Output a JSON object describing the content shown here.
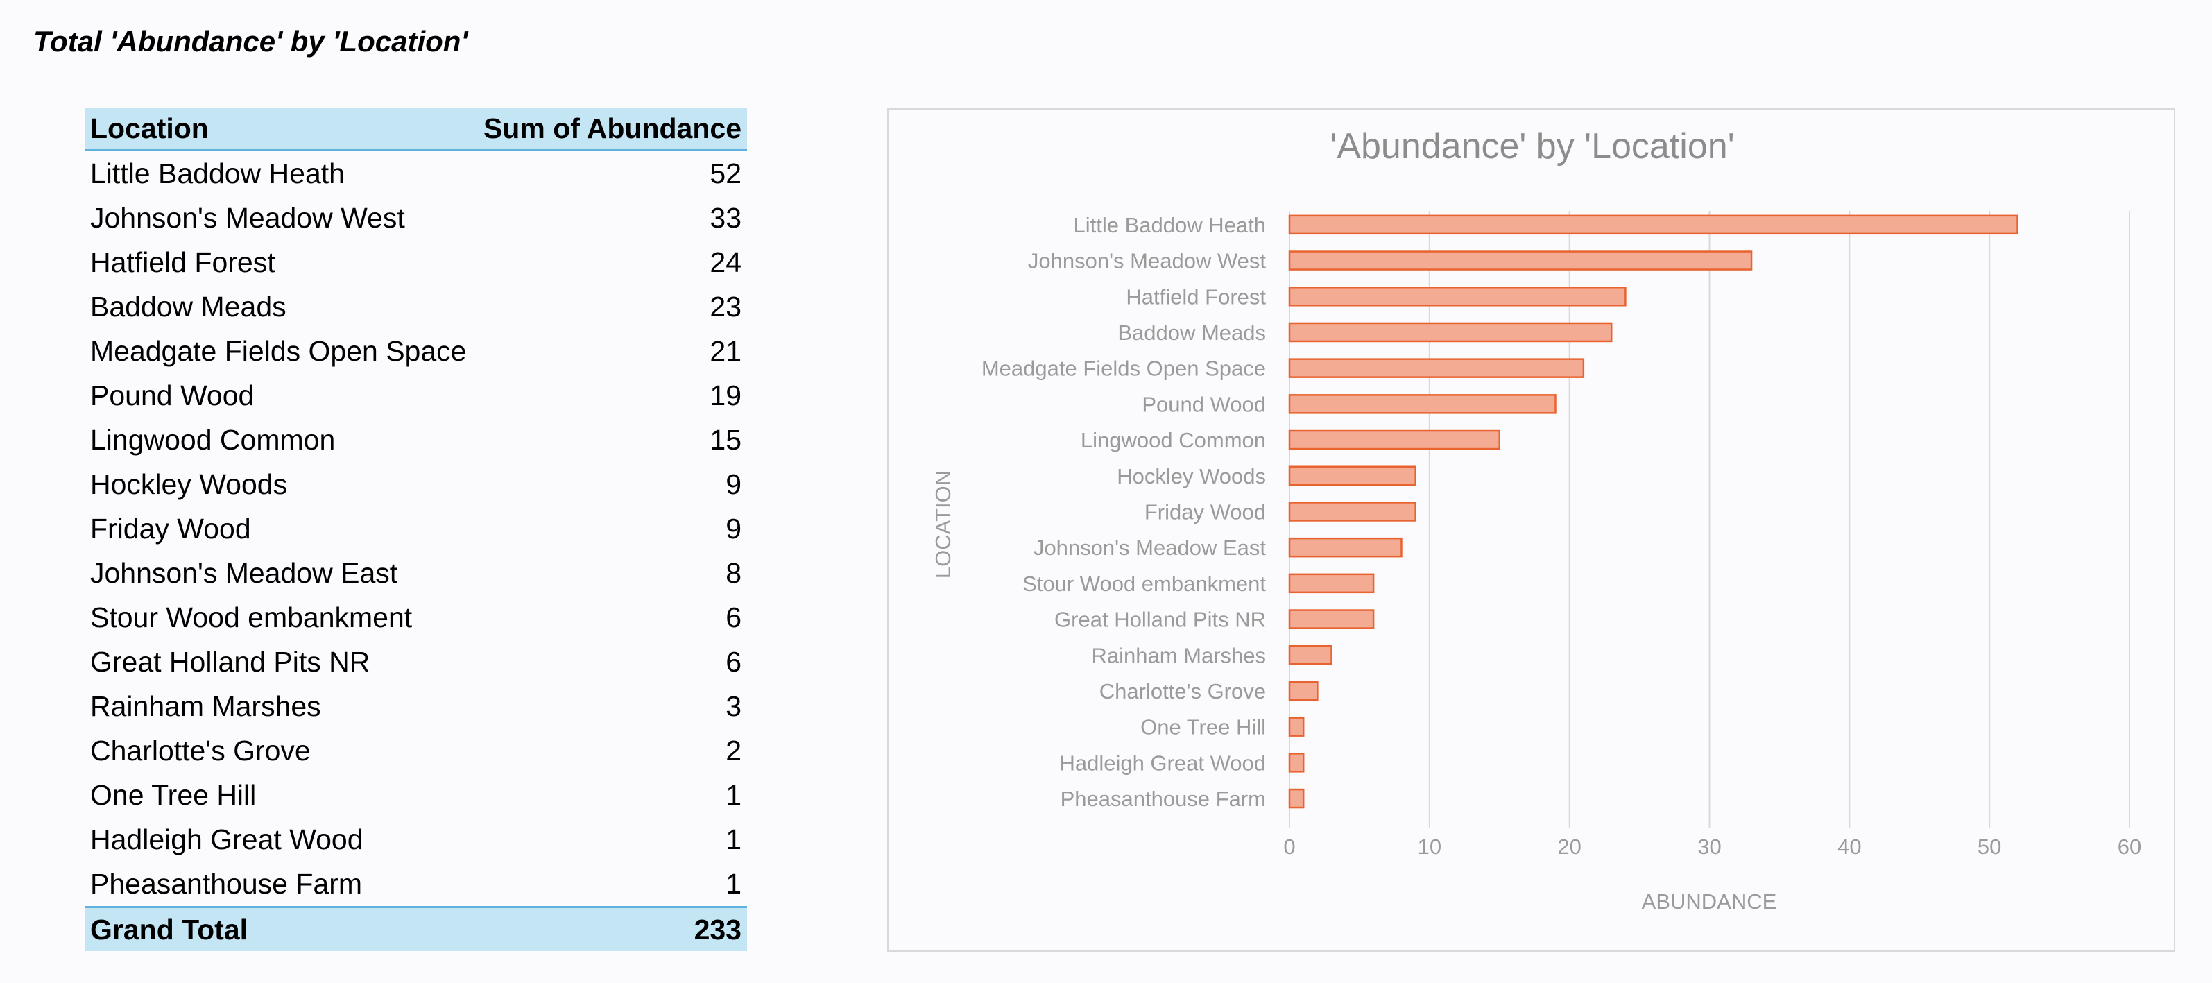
{
  "report_title": "Total 'Abundance' by 'Location'",
  "pivot": {
    "header_location": "Location",
    "header_value": "Sum of Abundance",
    "rows": [
      {
        "location": "Little Baddow Heath",
        "value": "52"
      },
      {
        "location": "Johnson's Meadow West",
        "value": "33"
      },
      {
        "location": "Hatfield Forest",
        "value": "24"
      },
      {
        "location": "Baddow Meads",
        "value": "23"
      },
      {
        "location": "Meadgate Fields Open Space",
        "value": "21"
      },
      {
        "location": "Pound Wood",
        "value": "19"
      },
      {
        "location": "Lingwood Common",
        "value": "15"
      },
      {
        "location": "Hockley Woods",
        "value": "9"
      },
      {
        "location": "Friday Wood",
        "value": "9"
      },
      {
        "location": "Johnson's Meadow East",
        "value": "8"
      },
      {
        "location": "Stour Wood embankment",
        "value": "6"
      },
      {
        "location": "Great Holland Pits NR",
        "value": "6"
      },
      {
        "location": "Rainham Marshes",
        "value": "3"
      },
      {
        "location": "Charlotte's Grove",
        "value": "2"
      },
      {
        "location": "One Tree Hill",
        "value": "1"
      },
      {
        "location": "Hadleigh Great Wood",
        "value": "1"
      },
      {
        "location": "Pheasanthouse Farm",
        "value": "1"
      }
    ],
    "total_label": "Grand Total",
    "total_value": "233"
  },
  "chart_data": {
    "type": "bar",
    "orientation": "horizontal",
    "title": "'Abundance' by 'Location'",
    "xlabel": "ABUNDANCE",
    "ylabel": "LOCATION",
    "categories": [
      "Little Baddow Heath",
      "Johnson's Meadow West",
      "Hatfield Forest",
      "Baddow Meads",
      "Meadgate Fields Open Space",
      "Pound Wood",
      "Lingwood Common",
      "Hockley Woods",
      "Friday Wood",
      "Johnson's Meadow East",
      "Stour Wood embankment",
      "Great Holland Pits NR",
      "Rainham Marshes",
      "Charlotte's Grove",
      "One Tree Hill",
      "Hadleigh Great Wood",
      "Pheasanthouse Farm"
    ],
    "values": [
      52,
      33,
      24,
      23,
      21,
      19,
      15,
      9,
      9,
      8,
      6,
      6,
      3,
      2,
      1,
      1,
      1
    ],
    "xlim": [
      0,
      60
    ],
    "xticks": [
      0,
      10,
      20,
      30,
      40,
      50,
      60
    ],
    "grid": true,
    "legend": "none",
    "colors": {
      "bar_fill": "#f4ab94",
      "bar_stroke": "#e8632f",
      "grid": "#d9d9d9",
      "text": "#9a9a9a"
    }
  }
}
